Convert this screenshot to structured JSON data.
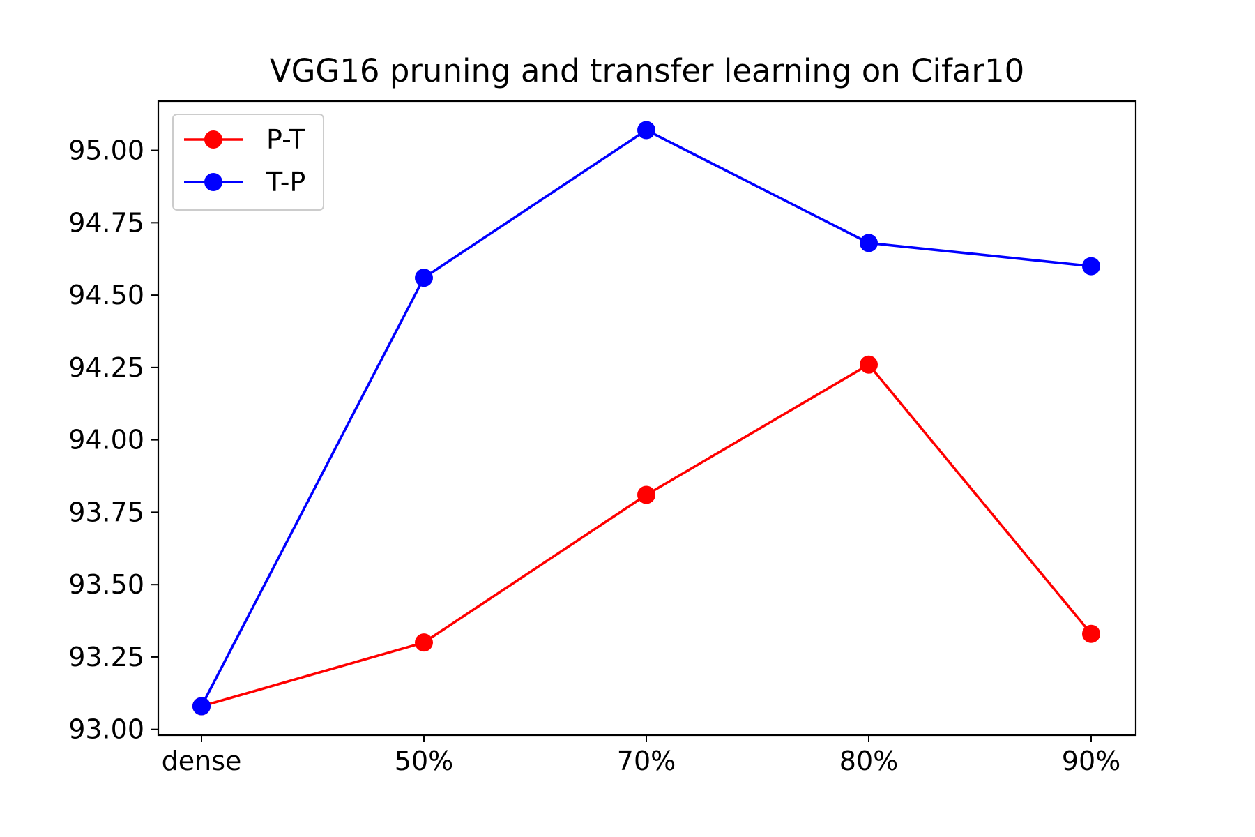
{
  "chart_data": {
    "type": "line",
    "title": "VGG16 pruning and transfer learning on Cifar10",
    "xlabel": "",
    "ylabel": "",
    "categories": [
      "dense",
      "50%",
      "70%",
      "80%",
      "90%"
    ],
    "ylim": [
      92.98,
      95.17
    ],
    "yticks": [
      "93.00",
      "93.25",
      "93.50",
      "93.75",
      "94.00",
      "94.25",
      "94.50",
      "94.75",
      "95.00"
    ],
    "grid": false,
    "legend_position": "top-left",
    "series": [
      {
        "name": "P-T",
        "color": "#ff0000",
        "values": [
          93.08,
          93.3,
          93.81,
          94.26,
          93.33
        ]
      },
      {
        "name": "T-P",
        "color": "#0000ff",
        "values": [
          93.08,
          94.56,
          95.07,
          94.68,
          94.6
        ]
      }
    ]
  }
}
